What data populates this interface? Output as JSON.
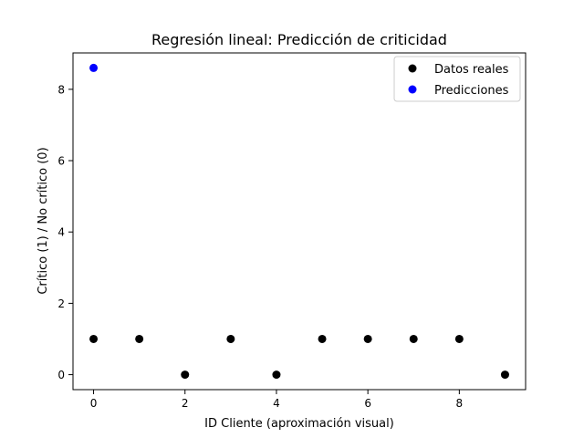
{
  "chart_data": {
    "type": "scatter",
    "title": "Regresión lineal: Predicción de criticidad",
    "xlabel": "ID Cliente (aproximación visual)",
    "ylabel": "Crítico (1) / No crítico (0)",
    "xlim": [
      -0.45,
      9.45
    ],
    "ylim": [
      -0.42,
      9.02
    ],
    "x_ticks": [
      0,
      2,
      4,
      6,
      8
    ],
    "y_ticks": [
      0,
      2,
      4,
      6,
      8
    ],
    "legend_position": "top-right",
    "grid": false,
    "series": [
      {
        "name": "Datos reales",
        "color": "#000000",
        "points": [
          {
            "x": 0,
            "y": 1
          },
          {
            "x": 1,
            "y": 1
          },
          {
            "x": 2,
            "y": 0
          },
          {
            "x": 3,
            "y": 1
          },
          {
            "x": 4,
            "y": 0
          },
          {
            "x": 5,
            "y": 1
          },
          {
            "x": 6,
            "y": 1
          },
          {
            "x": 7,
            "y": 1
          },
          {
            "x": 8,
            "y": 1
          },
          {
            "x": 9,
            "y": 0
          }
        ]
      },
      {
        "name": "Predicciones",
        "color": "#0000ff",
        "points": [
          {
            "x": 0,
            "y": 8.6
          }
        ]
      }
    ]
  }
}
